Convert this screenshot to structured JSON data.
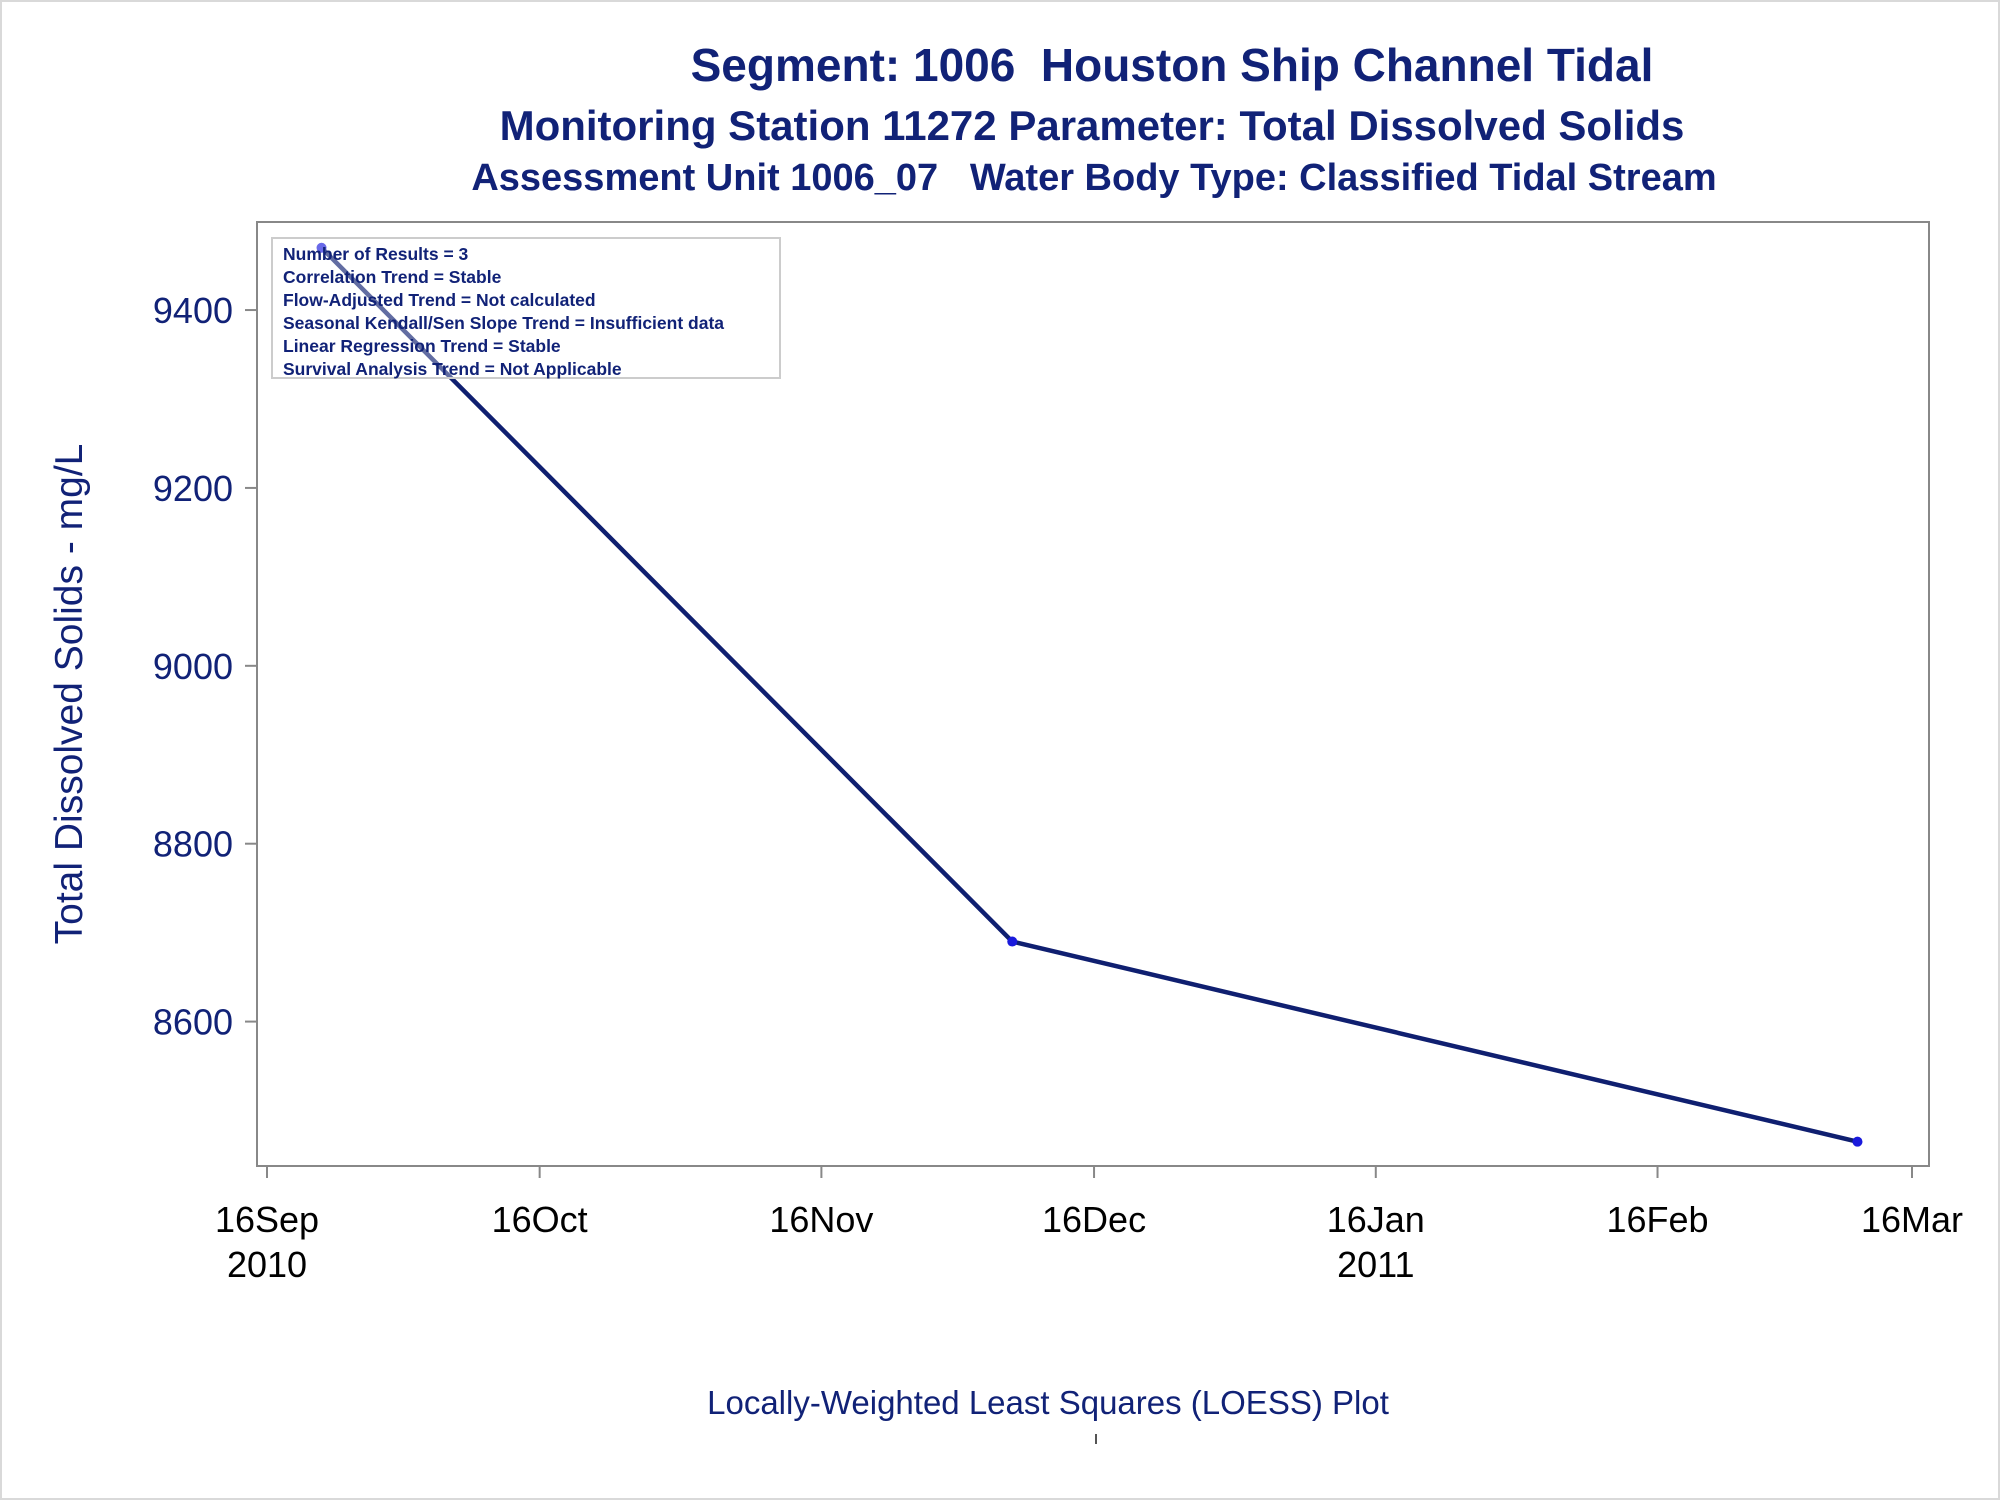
{
  "titles": {
    "line1": "Segment: 1006  Houston Ship Channel Tidal",
    "line2": "Monitoring Station 11272 Parameter: Total Dissolved Solids",
    "line3": "Assessment Unit 1006_07   Water Body Type: Classified Tidal Stream"
  },
  "stats_box": {
    "lines": [
      "Number of Results = 3",
      "Correlation Trend = Stable",
      "Flow-Adjusted Trend = Not calculated",
      "Seasonal Kendall/Sen Slope Trend = Insufficient data",
      "Linear Regression Trend = Stable",
      "Survival Analysis Trend = Not Applicable"
    ]
  },
  "footnote": "Locally-Weighted Least Squares (LOESS) Plot",
  "colors": {
    "text": "#112277",
    "line": "#0f1f70",
    "marker": "#1a1adc",
    "axis": "#888888"
  },
  "chart_data": {
    "type": "line",
    "title": "Segment: 1006  Houston Ship Channel Tidal",
    "xlabel": "",
    "ylabel": "Total Dissolved Solids - mg/L",
    "xlim": [
      "2010-09-16",
      "2011-03-16"
    ],
    "ylim": [
      8450,
      9490
    ],
    "y_ticks": [
      8600,
      8800,
      9000,
      9200,
      9400
    ],
    "x_ticks": [
      {
        "date": "2010-09-16",
        "label": "16Sep",
        "year": "2010"
      },
      {
        "date": "2010-10-16",
        "label": "16Oct",
        "year": ""
      },
      {
        "date": "2010-11-16",
        "label": "16Nov",
        "year": ""
      },
      {
        "date": "2010-12-16",
        "label": "16Dec",
        "year": ""
      },
      {
        "date": "2011-01-16",
        "label": "16Jan",
        "year": "2011"
      },
      {
        "date": "2011-02-16",
        "label": "16Feb",
        "year": ""
      },
      {
        "date": "2011-03-16",
        "label": "16Mar",
        "year": ""
      }
    ],
    "series": [
      {
        "points": [
          {
            "x": "2010-09-22",
            "y": 9470
          },
          {
            "x": "2010-12-07",
            "y": 8690
          },
          {
            "x": "2011-03-10",
            "y": 8465
          }
        ]
      }
    ],
    "grid": false,
    "legend": "none"
  }
}
